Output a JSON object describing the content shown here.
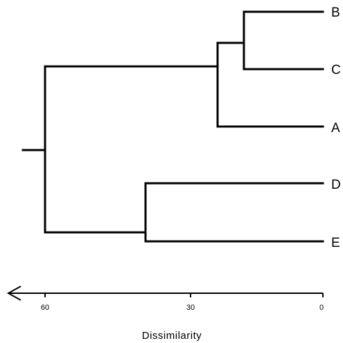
{
  "dendrogram": {
    "leaves": [
      {
        "label": "B"
      },
      {
        "label": "C"
      },
      {
        "label": "A"
      },
      {
        "label": "D"
      },
      {
        "label": "E"
      }
    ],
    "merges": [
      {
        "members": [
          "B",
          "C"
        ],
        "height": 18
      },
      {
        "members": [
          "B",
          "C",
          "A"
        ],
        "height": 24
      },
      {
        "members": [
          "D",
          "E"
        ],
        "height": 40
      },
      {
        "members": [
          "B",
          "C",
          "A",
          "D",
          "E"
        ],
        "height": 62
      }
    ]
  },
  "axis": {
    "title": "Dissimilarity",
    "ticks": [
      "60",
      "30",
      "0"
    ],
    "direction": "increasing-left",
    "colors": {
      "line": "#000000",
      "background": "#ffffff"
    }
  }
}
